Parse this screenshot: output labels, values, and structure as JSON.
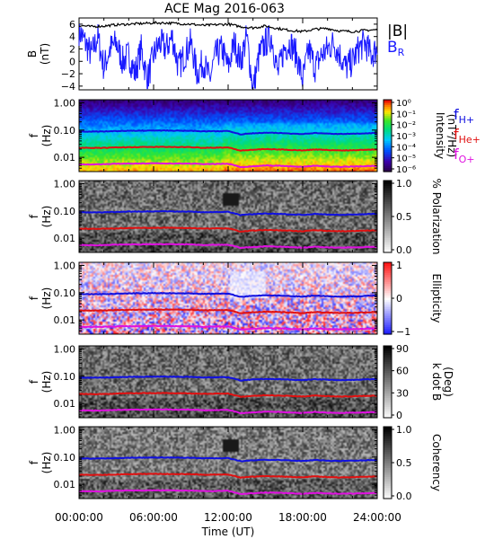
{
  "title": "ACE Mag 2016-063",
  "colors": {
    "bmag": "#000000",
    "br": "#1a1aff",
    "fH": "#1010e0",
    "fHe": "#e01010",
    "fO": "#e010e0",
    "ylabelF": "#000000"
  },
  "xaxis": {
    "label": "Time (UT)",
    "ticks": [
      "00:00:00",
      "06:00:00",
      "12:00:00",
      "18:00:00",
      "24:00:00"
    ],
    "range_hours": [
      0,
      24
    ]
  },
  "chart_data": [
    {
      "type": "line",
      "name": "field",
      "ylabel_top": "B",
      "ylabel_unit": "(nT)",
      "ylim": [
        -4.6,
        7.0
      ],
      "yticks": [
        "6",
        "4",
        "2",
        "0",
        "−2",
        "−4"
      ],
      "legend": {
        "bmag": "|B|",
        "br_main": "B",
        "br_sub": "R"
      },
      "series": [
        {
          "name": "|B|",
          "x": [
            0,
            1,
            2,
            3,
            4,
            5,
            6,
            7,
            8,
            9,
            10,
            11,
            12,
            13,
            14,
            15,
            16,
            17,
            18,
            19,
            20,
            21,
            22,
            23,
            24
          ],
          "values": [
            5.8,
            5.6,
            5.7,
            5.9,
            6.0,
            6.1,
            6.2,
            6.2,
            6.1,
            6.0,
            5.8,
            5.9,
            6.0,
            5.6,
            5.4,
            5.7,
            5.3,
            5.0,
            4.8,
            5.2,
            5.3,
            4.9,
            4.8,
            5.0,
            5.1
          ]
        },
        {
          "name": "B_R",
          "x": [
            0,
            0.5,
            1,
            1.5,
            2,
            2.5,
            3,
            3.5,
            4,
            4.5,
            5,
            5.5,
            6,
            6.5,
            7,
            7.5,
            8,
            8.5,
            9,
            9.5,
            10,
            10.5,
            11,
            11.5,
            12,
            12.5,
            13,
            13.5,
            14,
            14.5,
            15,
            15.5,
            16,
            16.5,
            17,
            17.5,
            18,
            18.5,
            19,
            19.5,
            20,
            20.5,
            21,
            21.5,
            22,
            22.5,
            23,
            23.5,
            24
          ],
          "values": [
            5,
            3,
            1,
            4,
            -1,
            2,
            3,
            0,
            1,
            -2,
            2,
            -3,
            1,
            3,
            2,
            4,
            -1,
            1,
            3,
            -2,
            0,
            -3,
            1,
            2,
            -1,
            3,
            0,
            4,
            -4.5,
            1,
            3,
            4,
            -2,
            2,
            3,
            1,
            -3,
            2,
            -1,
            1,
            2,
            3,
            1,
            -1,
            0,
            2,
            3,
            1,
            2
          ]
        }
      ]
    },
    {
      "type": "heatmap",
      "name": "intensity",
      "ylabel_top": "f",
      "ylabel_unit": "(Hz)",
      "yticks": [
        "1.00",
        "0.10",
        "0.01"
      ],
      "cbar_ticks": [
        "10⁰",
        "10⁻¹",
        "10⁻²",
        "10⁻³",
        "10⁻⁴",
        "10⁻⁵",
        "10⁻⁶"
      ],
      "cbar_label": "Intensity",
      "cbar_unit": "(nT²/Hz)",
      "legend": [
        {
          "main": "f",
          "sub": "H+",
          "key": "fH"
        },
        {
          "main": "f",
          "sub": "He+",
          "key": "fHe"
        },
        {
          "main": "f",
          "sub": "O+",
          "key": "fO"
        }
      ]
    },
    {
      "type": "heatmap",
      "name": "polarization",
      "ylabel_top": "f",
      "ylabel_unit": "(Hz)",
      "yticks": [
        "1.00",
        "0.10",
        "0.01"
      ],
      "cbar_ticks": [
        "1.0",
        "0.5",
        "0.0"
      ],
      "cbar_label": "% Polarization",
      "cbar_unit": ""
    },
    {
      "type": "heatmap",
      "name": "ellipticity",
      "ylabel_top": "f",
      "ylabel_unit": "(Hz)",
      "yticks": [
        "1.00",
        "0.10",
        "0.01"
      ],
      "cbar_ticks": [
        "1",
        "0",
        "−1"
      ],
      "cbar_label": "Ellipticity",
      "cbar_unit": ""
    },
    {
      "type": "heatmap",
      "name": "kdotb",
      "ylabel_top": "f",
      "ylabel_unit": "(Hz)",
      "yticks": [
        "1.00",
        "0.10",
        "0.01"
      ],
      "cbar_ticks": [
        "90",
        "60",
        "30",
        "0"
      ],
      "cbar_label": "k dot B",
      "cbar_unit": "(Deg)"
    },
    {
      "type": "heatmap",
      "name": "coherency",
      "ylabel_top": "f",
      "ylabel_unit": "(Hz)",
      "yticks": [
        "1.00",
        "0.10",
        "0.01"
      ],
      "cbar_ticks": [
        "1.0",
        "0.5",
        "0.0"
      ],
      "cbar_label": "Coherency",
      "cbar_unit": ""
    }
  ],
  "gyro_lines": {
    "x_hours": [
      0,
      1,
      2,
      3,
      4,
      5,
      6,
      7,
      8,
      9,
      10,
      11,
      12,
      13,
      14,
      15,
      16,
      17,
      18,
      19,
      20,
      21,
      22,
      23,
      24
    ],
    "fH": [
      0.09,
      0.088,
      0.089,
      0.092,
      0.094,
      0.095,
      0.096,
      0.096,
      0.095,
      0.094,
      0.09,
      0.091,
      0.092,
      0.07,
      0.076,
      0.08,
      0.078,
      0.075,
      0.072,
      0.078,
      0.074,
      0.072,
      0.073,
      0.076,
      0.078
    ],
    "fHe": [
      0.0225,
      0.022,
      0.0222,
      0.023,
      0.0235,
      0.0238,
      0.024,
      0.024,
      0.0238,
      0.0235,
      0.0225,
      0.0228,
      0.023,
      0.0175,
      0.019,
      0.02,
      0.0195,
      0.0188,
      0.018,
      0.0195,
      0.0185,
      0.018,
      0.0182,
      0.019,
      0.0195
    ],
    "fO": [
      0.0056,
      0.0055,
      0.0056,
      0.0058,
      0.0059,
      0.0059,
      0.006,
      0.006,
      0.0059,
      0.0059,
      0.0056,
      0.0057,
      0.0058,
      0.0044,
      0.0047,
      0.005,
      0.0049,
      0.0047,
      0.0045,
      0.0049,
      0.0046,
      0.0045,
      0.0046,
      0.0047,
      0.0049
    ]
  }
}
